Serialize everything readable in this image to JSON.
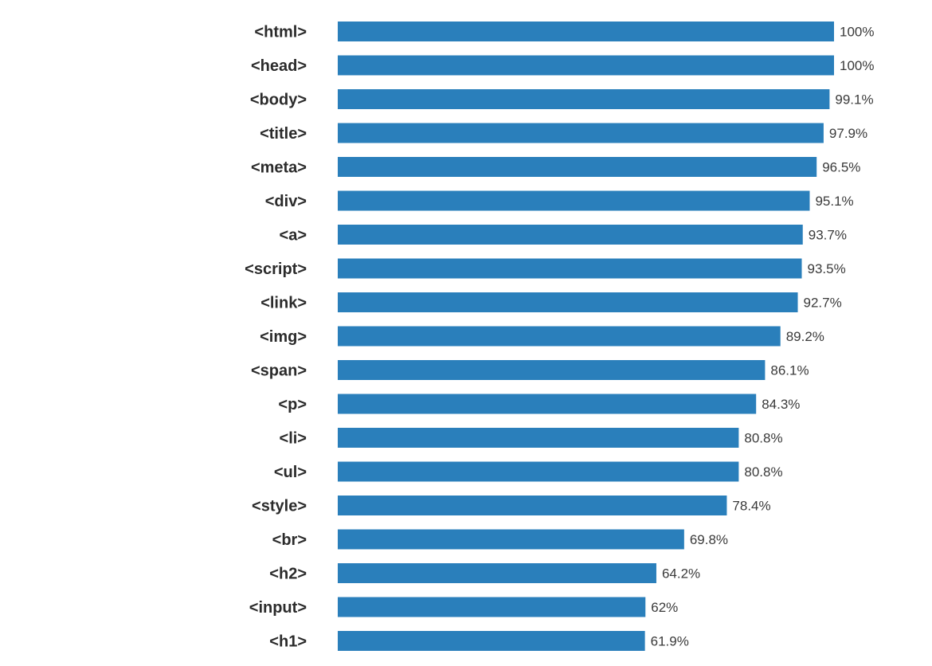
{
  "colors": {
    "bar": "#2a7fbb",
    "label": "#2b2b2b",
    "value_label": "#3a3a3a",
    "background": "#ffffff"
  },
  "chart_data": {
    "type": "bar",
    "orientation": "horizontal",
    "categories": [
      "<html>",
      "<head>",
      "<body>",
      "<title>",
      "<meta>",
      "<div>",
      "<a>",
      "<script>",
      "<link>",
      "<img>",
      "<span>",
      "<p>",
      "<li>",
      "<ul>",
      "<style>",
      "<br>",
      "<h2>",
      "<input>",
      "<h1>"
    ],
    "values": [
      100,
      100,
      99.1,
      97.9,
      96.5,
      95.1,
      93.7,
      93.5,
      92.7,
      89.2,
      86.1,
      84.3,
      80.8,
      80.8,
      78.4,
      69.8,
      64.2,
      62,
      61.9
    ],
    "value_labels": [
      "100%",
      "100%",
      "99.1%",
      "97.9%",
      "96.5%",
      "95.1%",
      "93.7%",
      "93.5%",
      "92.7%",
      "89.2%",
      "86.1%",
      "84.3%",
      "80.8%",
      "80.8%",
      "78.4%",
      "69.8%",
      "64.2%",
      "62%",
      "61.9%"
    ],
    "value_unit": "%",
    "xlim": [
      0,
      100
    ],
    "grid": false,
    "legend": "none",
    "title": "",
    "xlabel": "",
    "ylabel": ""
  }
}
